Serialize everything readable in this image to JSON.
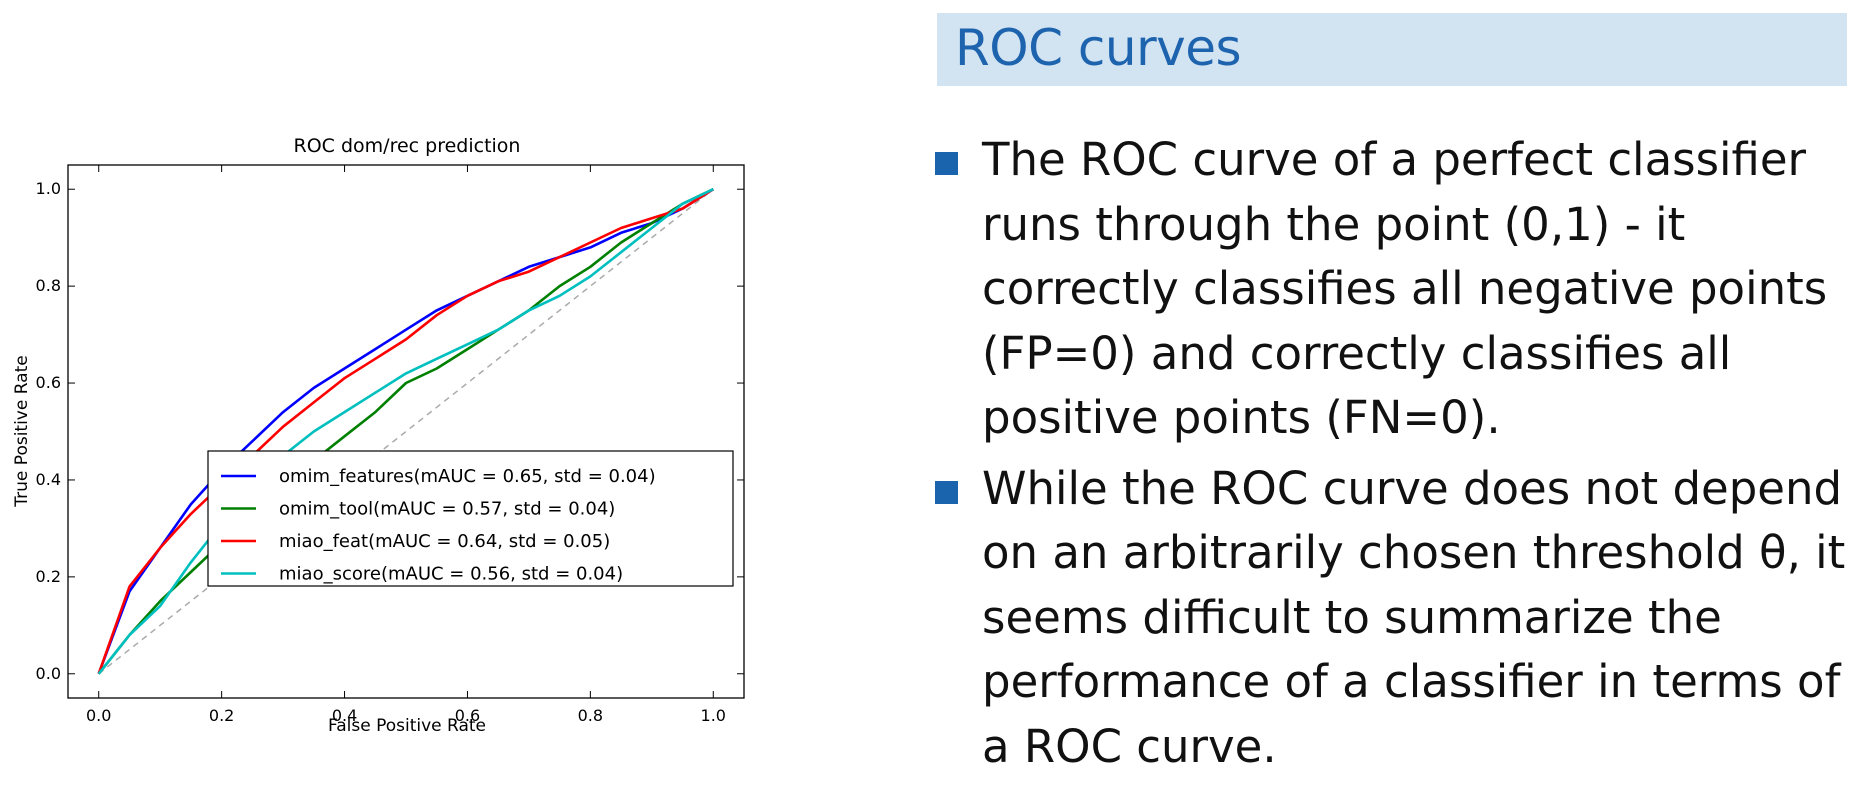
{
  "chart_data": {
    "type": "line",
    "title": "ROC dom/rec prediction",
    "xlabel": "False Positive Rate",
    "ylabel": "True Positive Rate",
    "xlim": [
      -0.05,
      1.05
    ],
    "ylim": [
      -0.05,
      1.05
    ],
    "xticks": [
      "0.0",
      "0.2",
      "0.4",
      "0.6",
      "0.8",
      "1.0"
    ],
    "yticks": [
      "0.0",
      "0.2",
      "0.4",
      "0.6",
      "0.8",
      "1.0"
    ],
    "grid": false,
    "legend_position": "lower-right",
    "diagonal": {
      "x": [
        0,
        1
      ],
      "y": [
        0,
        1
      ],
      "color": "#aaaaaa",
      "style": "dashed"
    },
    "series": [
      {
        "name": "omim_features(mAUC = 0.65, std = 0.04)",
        "color": "#0000ff",
        "x": [
          0,
          0.05,
          0.1,
          0.15,
          0.2,
          0.25,
          0.3,
          0.35,
          0.4,
          0.45,
          0.5,
          0.55,
          0.6,
          0.65,
          0.7,
          0.75,
          0.8,
          0.85,
          0.9,
          0.95,
          1.0
        ],
        "y": [
          0,
          0.17,
          0.26,
          0.35,
          0.42,
          0.48,
          0.54,
          0.59,
          0.63,
          0.67,
          0.71,
          0.75,
          0.78,
          0.81,
          0.84,
          0.86,
          0.88,
          0.91,
          0.93,
          0.96,
          1.0
        ]
      },
      {
        "name": "omim_tool(mAUC = 0.57, std = 0.04)",
        "color": "#008000",
        "x": [
          0,
          0.05,
          0.1,
          0.15,
          0.2,
          0.25,
          0.3,
          0.35,
          0.4,
          0.45,
          0.5,
          0.55,
          0.6,
          0.65,
          0.7,
          0.75,
          0.8,
          0.85,
          0.9,
          0.95,
          1.0
        ],
        "y": [
          0,
          0.08,
          0.15,
          0.21,
          0.27,
          0.34,
          0.39,
          0.44,
          0.49,
          0.54,
          0.6,
          0.63,
          0.67,
          0.71,
          0.75,
          0.8,
          0.84,
          0.89,
          0.93,
          0.97,
          1.0
        ]
      },
      {
        "name": "miao_feat(mAUC = 0.64, std = 0.05)",
        "color": "#ff0000",
        "x": [
          0,
          0.05,
          0.1,
          0.15,
          0.2,
          0.25,
          0.3,
          0.35,
          0.4,
          0.45,
          0.5,
          0.55,
          0.6,
          0.65,
          0.7,
          0.75,
          0.8,
          0.85,
          0.9,
          0.95,
          1.0
        ],
        "y": [
          0,
          0.18,
          0.26,
          0.33,
          0.39,
          0.45,
          0.51,
          0.56,
          0.61,
          0.65,
          0.69,
          0.74,
          0.78,
          0.81,
          0.83,
          0.86,
          0.89,
          0.92,
          0.94,
          0.96,
          1.0
        ]
      },
      {
        "name": "miao_score(mAUC = 0.56, std = 0.04)",
        "color": "#00bfbf",
        "x": [
          0,
          0.05,
          0.1,
          0.15,
          0.2,
          0.25,
          0.3,
          0.35,
          0.4,
          0.45,
          0.5,
          0.55,
          0.6,
          0.65,
          0.7,
          0.75,
          0.8,
          0.85,
          0.9,
          0.95,
          1.0
        ],
        "y": [
          0,
          0.08,
          0.14,
          0.23,
          0.31,
          0.38,
          0.45,
          0.5,
          0.54,
          0.58,
          0.62,
          0.65,
          0.68,
          0.71,
          0.75,
          0.78,
          0.82,
          0.87,
          0.92,
          0.97,
          1.0
        ]
      }
    ]
  },
  "slide": {
    "title": "ROC curves",
    "bullets": [
      "The ROC curve of a perfect classifier runs through the point (0,1) - it correctly classifies all negative points (FP=0) and correctly classifies all positive points (FN=0).",
      "While the ROC curve does not depend on an arbitrarily chosen threshold θ, it seems difficult to summarize the performance of a classifier in terms of a ROC curve."
    ],
    "bullet_color": "#1a64ae",
    "title_color": "#1d63ad",
    "title_background": "#d2e3f2"
  }
}
